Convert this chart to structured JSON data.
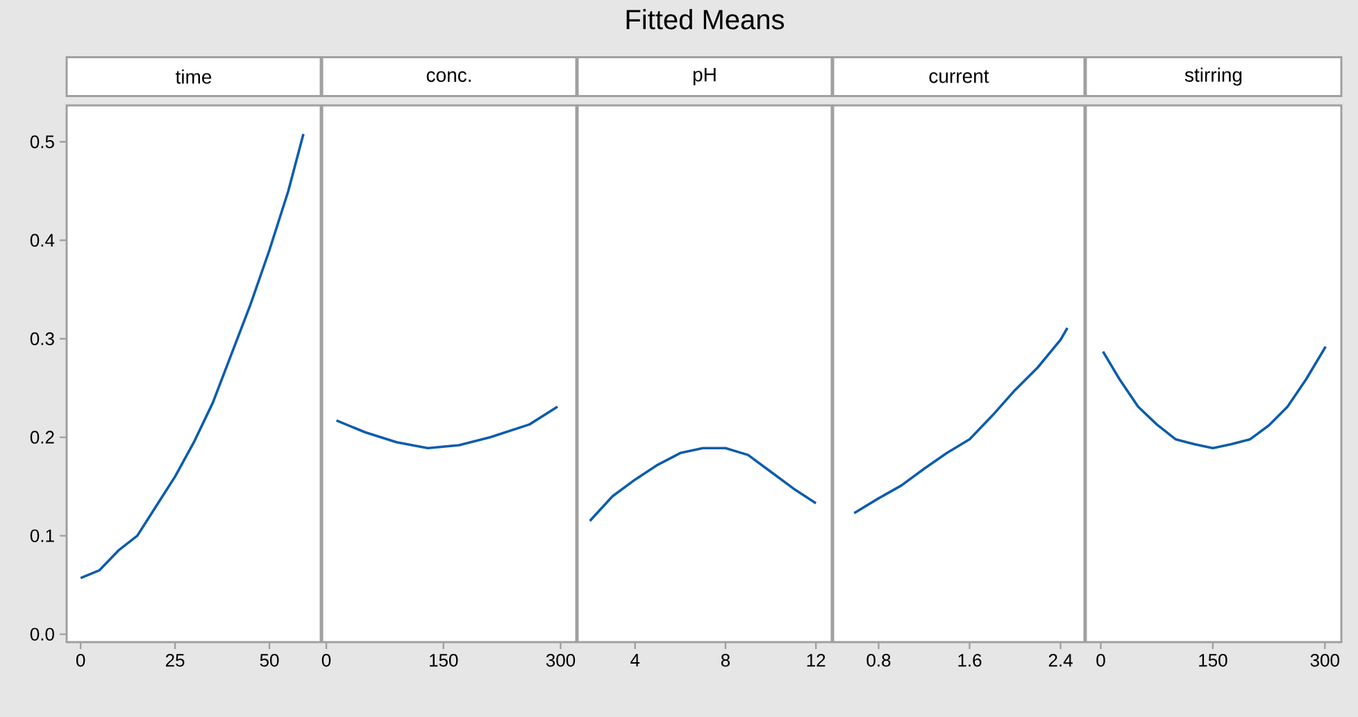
{
  "chart_data": [
    {
      "type": "line",
      "xlabel": "time",
      "x": [
        0,
        5,
        10,
        15,
        20,
        25,
        30,
        35,
        40,
        45,
        50,
        55,
        59
      ],
      "series": [
        {
          "color": "#0b5cad",
          "values": [
            0.057,
            0.065,
            0.085,
            0.1,
            0.13,
            0.16,
            0.195,
            0.235,
            0.285,
            0.335,
            0.39,
            0.45,
            0.508
          ]
        }
      ],
      "xlim": [
        -3.7,
        63.6
      ],
      "xticks": [
        0,
        25,
        50
      ],
      "ylim": [
        -0.008,
        0.537
      ],
      "yticks": [
        {
          "value": 0,
          "label": "0.0"
        },
        0.1,
        0.2,
        0.3,
        0.4,
        0.5
      ]
    },
    {
      "type": "line",
      "xlabel": "conc.",
      "x": [
        13,
        50,
        90,
        130,
        170,
        210,
        260,
        296
      ],
      "series": [
        {
          "color": "#0b5cad",
          "values": [
            0.217,
            0.205,
            0.195,
            0.189,
            0.192,
            0.2,
            0.213,
            0.231
          ]
        }
      ],
      "xlim": [
        -5.3,
        320
      ],
      "xticks": [
        0,
        150,
        300
      ],
      "ylim": [
        -0.008,
        0.537
      ],
      "tick_labels": "x"
    },
    {
      "type": "line",
      "title": "Fitted Means",
      "xlabel": "pH",
      "x": [
        2,
        3,
        4,
        5,
        6,
        7,
        8,
        9,
        10,
        11,
        12
      ],
      "series": [
        {
          "color": "#0b5cad",
          "values": [
            0.115,
            0.14,
            0.157,
            0.172,
            0.184,
            0.189,
            0.189,
            0.182,
            0.165,
            0.148,
            0.133
          ]
        }
      ],
      "xlim": [
        1.46,
        12.7
      ],
      "xticks": [
        4,
        8,
        12
      ],
      "ylim": [
        -0.008,
        0.537
      ],
      "tick_labels": "x"
    },
    {
      "type": "line",
      "xlabel": "current",
      "x": [
        0.585,
        0.8,
        1.0,
        1.2,
        1.4,
        1.6,
        1.8,
        2.0,
        2.2,
        2.4,
        2.46
      ],
      "series": [
        {
          "color": "#0b5cad",
          "values": [
            0.123,
            0.138,
            0.151,
            0.168,
            0.184,
            0.198,
            0.222,
            0.248,
            0.271,
            0.299,
            0.311
          ]
        }
      ],
      "xlim": [
        0.4,
        2.61
      ],
      "xticks": [
        0.8,
        1.6,
        2.4
      ],
      "ylim": [
        -0.008,
        0.537
      ],
      "tick_labels": "x"
    },
    {
      "type": "line",
      "xlabel": "stirring",
      "x": [
        3,
        25,
        50,
        75,
        100,
        125,
        150,
        175,
        200,
        225,
        250,
        275,
        301
      ],
      "series": [
        {
          "color": "#0b5cad",
          "values": [
            0.287,
            0.259,
            0.231,
            0.213,
            0.198,
            0.193,
            0.189,
            0.193,
            0.198,
            0.212,
            0.231,
            0.259,
            0.292
          ]
        }
      ],
      "xlim": [
        -20,
        322
      ],
      "xticks": [
        0,
        150,
        300
      ],
      "ylim": [
        -0.008,
        0.537
      ],
      "tick_labels": "x"
    }
  ]
}
